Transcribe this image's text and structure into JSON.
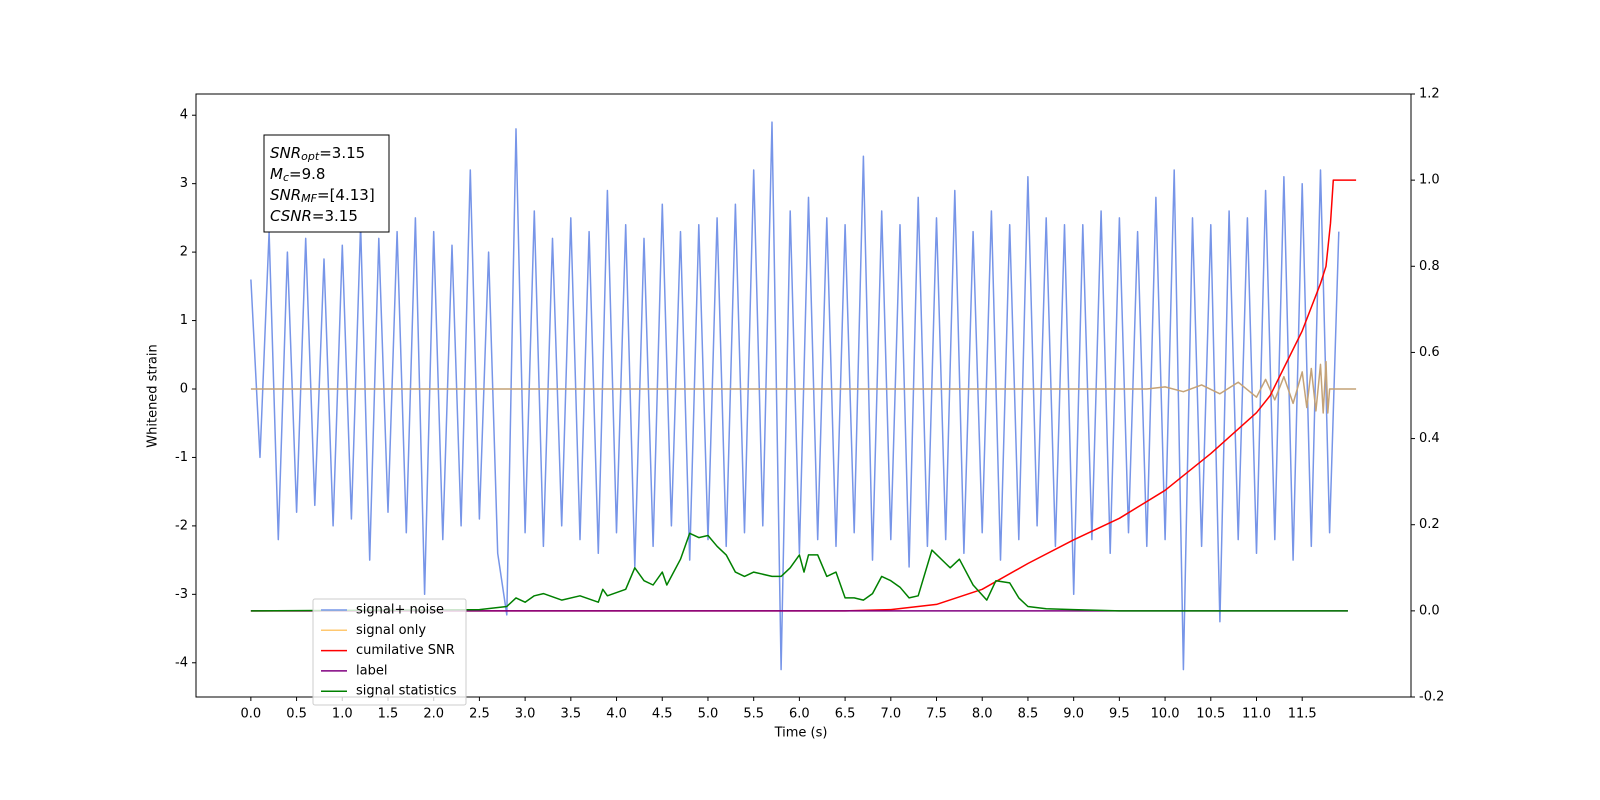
{
  "chart_data": {
    "type": "line",
    "xlabel": "Time (s)",
    "ylabel": "Whitened strain",
    "xlim": [
      -0.6,
      12.69
    ],
    "ylim": [
      -4.5,
      4.31
    ],
    "y2lim": [
      -0.2,
      1.2
    ],
    "xticks": [
      {
        "value": 0,
        "label": "0.0"
      },
      0.5,
      {
        "value": 1,
        "label": "1.0"
      },
      1.5,
      {
        "value": 2,
        "label": "2.0"
      },
      2.5,
      {
        "value": 3,
        "label": "3.0"
      },
      3.5,
      {
        "value": 4,
        "label": "4.0"
      },
      4.5,
      {
        "value": 5,
        "label": "5.0"
      },
      5.5,
      {
        "value": 6,
        "label": "6.0"
      },
      6.5,
      {
        "value": 7,
        "label": "7.0"
      },
      7.5,
      {
        "value": 8,
        "label": "8.0"
      },
      8.5,
      {
        "value": 9,
        "label": "9.0"
      },
      9.5,
      {
        "value": 10,
        "label": "10.0"
      },
      10.5,
      {
        "value": 11,
        "label": "11.0"
      },
      11.5
    ],
    "yticks": [
      -4,
      -3,
      -2,
      -1,
      0,
      1,
      2,
      3,
      4
    ],
    "y2ticks": [
      -0.2,
      {
        "value": 0,
        "label": "0.0"
      },
      0.2,
      0.4,
      0.6,
      0.8,
      {
        "value": 1,
        "label": "1.0"
      },
      1.2
    ],
    "legend": "lower left",
    "annotation": [
      {
        "symbol": "SNR",
        "subscript": "opt",
        "value": "=3.15"
      },
      {
        "symbol": "M",
        "subscript": "c",
        "value": "=9.8"
      },
      {
        "symbol": "SNR",
        "subscript": "MF",
        "value": "=[4.13]"
      },
      {
        "symbol": "CSNR",
        "value": "=3.15"
      }
    ],
    "series": [
      {
        "name": "signal+ noise",
        "color": "#7795e8",
        "x": [
          0.0,
          0.1,
          0.2,
          0.3,
          0.4,
          0.5,
          0.6,
          0.7,
          0.8,
          0.9,
          1.0,
          1.1,
          1.2,
          1.3,
          1.4,
          1.5,
          1.6,
          1.7,
          1.8,
          1.9,
          2.0,
          2.1,
          2.2,
          2.3,
          2.4,
          2.5,
          2.6,
          2.7,
          2.8,
          2.9,
          3.0,
          3.1,
          3.2,
          3.3,
          3.4,
          3.5,
          3.6,
          3.7,
          3.8,
          3.9,
          4.0,
          4.1,
          4.2,
          4.3,
          4.4,
          4.5,
          4.6,
          4.7,
          4.8,
          4.9,
          5.0,
          5.1,
          5.2,
          5.3,
          5.4,
          5.5,
          5.6,
          5.7,
          5.8,
          5.9,
          6.0,
          6.1,
          6.2,
          6.3,
          6.4,
          6.5,
          6.6,
          6.7,
          6.8,
          6.9,
          7.0,
          7.1,
          7.2,
          7.3,
          7.4,
          7.5,
          7.6,
          7.7,
          7.8,
          7.9,
          8.0,
          8.1,
          8.2,
          8.3,
          8.4,
          8.5,
          8.6,
          8.7,
          8.8,
          8.9,
          9.0,
          9.1,
          9.2,
          9.3,
          9.4,
          9.5,
          9.6,
          9.7,
          9.8,
          9.9,
          10.0,
          10.1,
          10.2,
          10.3,
          10.4,
          10.5,
          10.6,
          10.7,
          10.8,
          10.9,
          11.0,
          11.1,
          11.2,
          11.3,
          11.4,
          11.5,
          11.6,
          11.7,
          11.8,
          11.9
        ],
        "values": [
          1.6,
          -1.0,
          2.3,
          -2.2,
          2.0,
          -1.8,
          2.2,
          -1.7,
          1.9,
          -2.0,
          2.1,
          -1.9,
          2.4,
          -2.5,
          2.2,
          -1.8,
          2.3,
          -2.1,
          2.5,
          -3.0,
          2.3,
          -2.2,
          2.1,
          -2.0,
          3.2,
          -1.9,
          2.0,
          -2.4,
          -3.3,
          3.8,
          -2.1,
          2.6,
          -2.3,
          2.2,
          -2.0,
          2.5,
          -2.2,
          2.3,
          -2.4,
          2.9,
          -2.1,
          2.4,
          -2.6,
          2.2,
          -2.3,
          2.7,
          -2.0,
          2.3,
          -2.5,
          2.4,
          -2.2,
          2.5,
          -2.3,
          2.7,
          -2.1,
          3.2,
          -2.0,
          3.9,
          -4.1,
          2.6,
          -2.4,
          2.8,
          -2.2,
          2.5,
          -2.3,
          2.4,
          -2.1,
          3.4,
          -2.5,
          2.6,
          -2.2,
          2.4,
          -2.6,
          2.8,
          -2.3,
          2.5,
          -2.2,
          2.9,
          -2.4,
          2.3,
          -2.1,
          2.6,
          -2.5,
          2.4,
          -2.2,
          3.1,
          -2.0,
          2.5,
          -2.3,
          2.4,
          -3.0,
          2.4,
          -2.2,
          2.6,
          -2.4,
          2.5,
          -2.1,
          2.3,
          -2.3,
          2.8,
          -2.2,
          3.2,
          -4.1,
          2.5,
          -2.3,
          2.4,
          -3.4,
          2.6,
          -2.2,
          2.5,
          -2.4,
          2.9,
          -2.2,
          3.1,
          -2.5,
          3.0,
          -2.3,
          3.2,
          -2.1,
          2.3
        ]
      },
      {
        "name": "signal only",
        "color": "#c4a277",
        "legend_color": "#ffc870",
        "x": [
          0,
          9.8,
          10.0,
          10.2,
          10.4,
          10.6,
          10.8,
          11.0,
          11.1,
          11.2,
          11.3,
          11.4,
          11.5,
          11.55,
          11.6,
          11.65,
          11.7,
          11.73,
          11.76,
          11.78,
          11.8,
          12.09
        ],
        "values": [
          0,
          0,
          0.03,
          -0.04,
          0.06,
          -0.07,
          0.1,
          -0.12,
          0.14,
          -0.16,
          0.18,
          -0.21,
          0.25,
          -0.27,
          0.3,
          -0.32,
          0.36,
          -0.35,
          0.4,
          -0.35,
          0,
          0
        ]
      },
      {
        "name": "cumilative SNR",
        "color": "#ff0000",
        "axis": "y2",
        "x": [
          0,
          6.5,
          7.0,
          7.5,
          8.0,
          8.5,
          9.0,
          9.5,
          10.0,
          10.5,
          11.0,
          11.15,
          11.5,
          11.7,
          11.76,
          11.81,
          11.84,
          12.09
        ],
        "values": [
          0,
          0,
          0.003,
          0.015,
          0.05,
          0.11,
          0.165,
          0.215,
          0.28,
          0.365,
          0.46,
          0.5,
          0.65,
          0.76,
          0.8,
          0.9,
          1.0,
          1.0
        ]
      },
      {
        "name": "label",
        "color": "#800080",
        "axis": "y2",
        "x": [
          0,
          12.0
        ],
        "values": [
          0,
          0
        ]
      },
      {
        "name": "signal statistics",
        "color": "#008000",
        "axis": "y2",
        "x": [
          0,
          2.5,
          2.8,
          2.9,
          3.0,
          3.1,
          3.2,
          3.4,
          3.6,
          3.8,
          3.85,
          3.9,
          4.1,
          4.2,
          4.3,
          4.4,
          4.5,
          4.55,
          4.7,
          4.8,
          4.9,
          5.0,
          5.1,
          5.2,
          5.3,
          5.4,
          5.5,
          5.7,
          5.8,
          5.9,
          6.0,
          6.05,
          6.1,
          6.2,
          6.3,
          6.4,
          6.5,
          6.6,
          6.7,
          6.8,
          6.9,
          7.0,
          7.1,
          7.2,
          7.3,
          7.45,
          7.6,
          7.65,
          7.75,
          7.9,
          8.05,
          8.15,
          8.3,
          8.4,
          8.5,
          8.7,
          9.0,
          9.5,
          12.0
        ],
        "values": [
          0,
          0.003,
          0.01,
          0.03,
          0.02,
          0.035,
          0.04,
          0.025,
          0.035,
          0.02,
          0.05,
          0.035,
          0.05,
          0.1,
          0.07,
          0.06,
          0.09,
          0.06,
          0.12,
          0.18,
          0.17,
          0.175,
          0.15,
          0.13,
          0.09,
          0.08,
          0.09,
          0.08,
          0.08,
          0.1,
          0.13,
          0.09,
          0.13,
          0.13,
          0.08,
          0.09,
          0.03,
          0.03,
          0.025,
          0.04,
          0.08,
          0.07,
          0.055,
          0.03,
          0.035,
          0.141,
          0.11,
          0.1,
          0.12,
          0.06,
          0.025,
          0.07,
          0.065,
          0.03,
          0.01,
          0.005,
          0.003,
          0,
          0
        ]
      }
    ]
  }
}
